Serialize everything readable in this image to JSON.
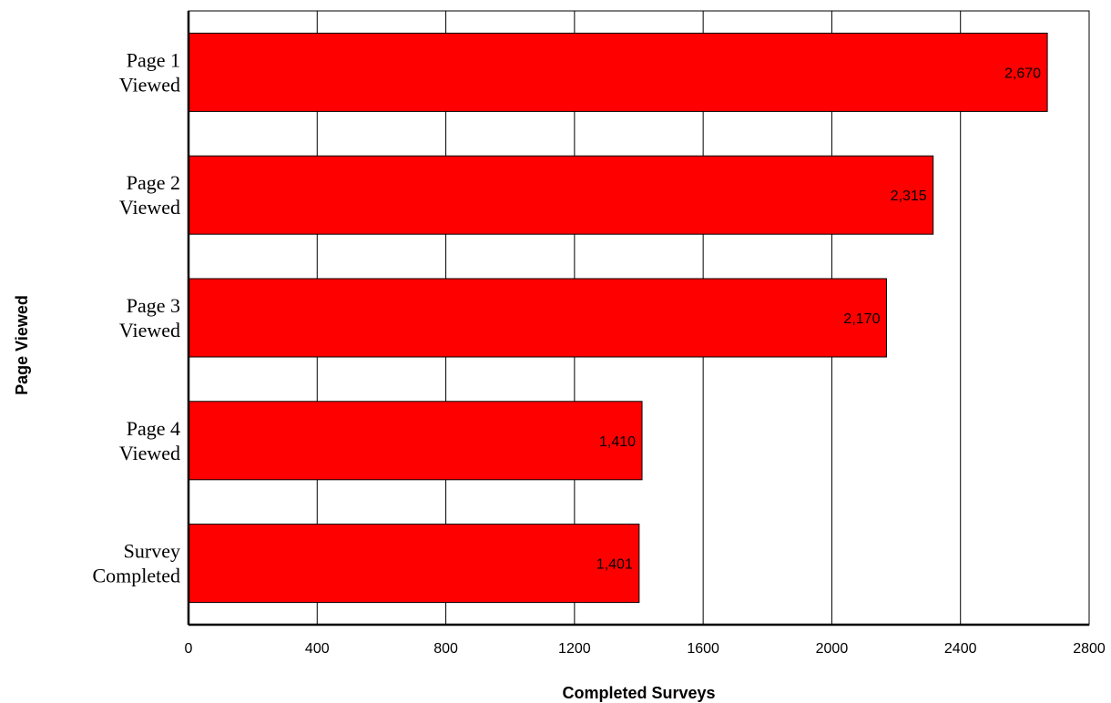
{
  "chart_data": {
    "type": "bar",
    "orientation": "horizontal",
    "categories": [
      [
        "Page 1",
        "Viewed"
      ],
      [
        "Page 2",
        "Viewed"
      ],
      [
        "Page 3",
        "Viewed"
      ],
      [
        "Page 4",
        "Viewed"
      ],
      [
        "Survey",
        "Completed"
      ]
    ],
    "values": [
      2670,
      2315,
      2170,
      1410,
      1401
    ],
    "data_labels": [
      "2,670",
      "2,315",
      "2,170",
      "1,410",
      "1,401"
    ],
    "title": "",
    "xlabel": "Completed Surveys",
    "ylabel": "Page Viewed",
    "xlim": [
      0,
      2800
    ],
    "xticks": [
      0,
      400,
      800,
      1200,
      1600,
      2000,
      2400,
      2800
    ],
    "grid": "vertical",
    "legend": "none",
    "bar_color": "#ff0000",
    "bar_edge_color": "#000000"
  }
}
